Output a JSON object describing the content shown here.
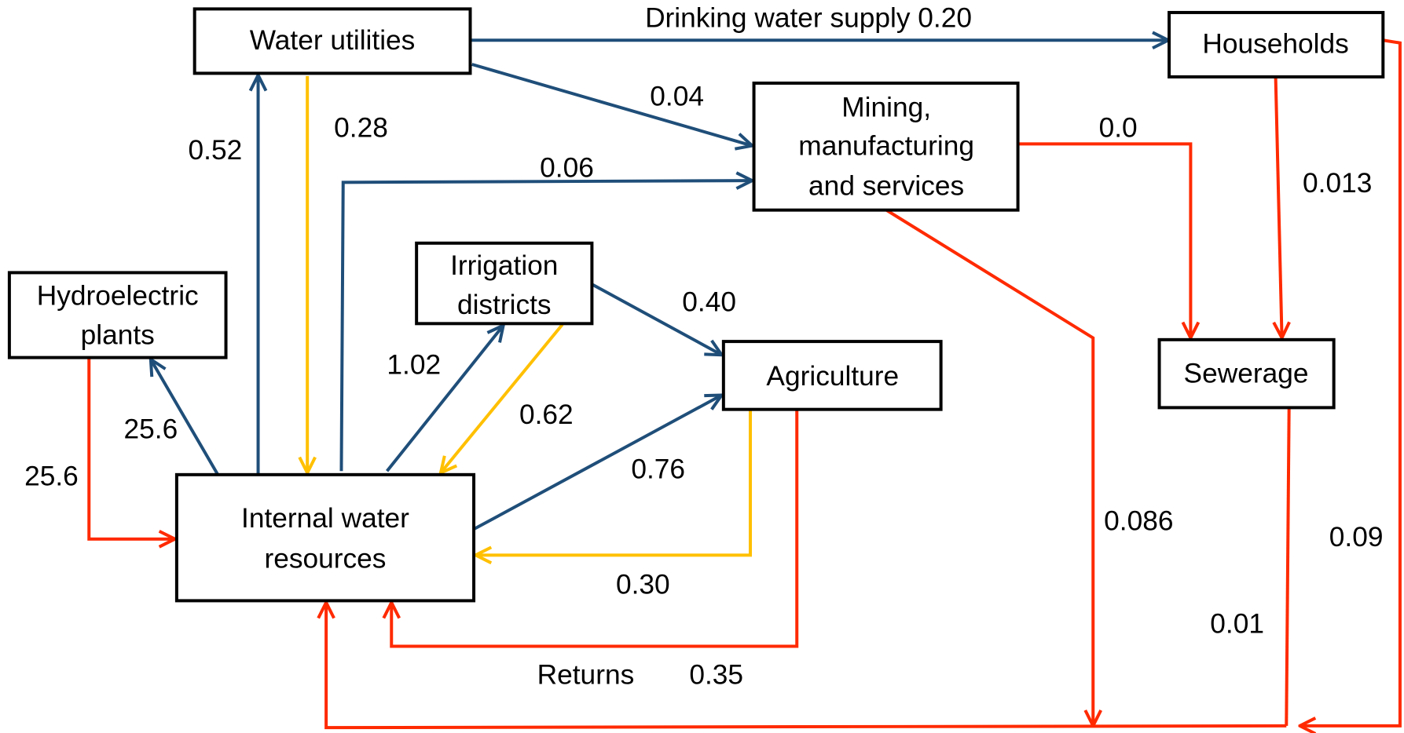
{
  "nodes": [
    {
      "lines": [
        "Water utilities"
      ]
    },
    {
      "lines": [
        "Households"
      ]
    },
    {
      "lines": [
        "Mining,",
        "manufacturing",
        "and services"
      ]
    },
    {
      "lines": [
        "Hydroelectric",
        "plants"
      ]
    },
    {
      "lines": [
        "Irrigation",
        "districts"
      ]
    },
    {
      "lines": [
        "Agriculture"
      ]
    },
    {
      "lines": [
        "Sewerage"
      ]
    },
    {
      "lines": [
        "Internal water",
        "resources"
      ]
    }
  ],
  "flow_labels": [
    "Drinking water supply 0.20",
    "0.04",
    "0.52",
    "0.06",
    "25.6",
    "1.02",
    "0.40",
    "0.76",
    "0.28",
    "0.62",
    "0.30",
    "25.6",
    "0.0",
    "0.013",
    "Returns",
    "0.35",
    "0.086",
    "0.01",
    "0.09"
  ]
}
